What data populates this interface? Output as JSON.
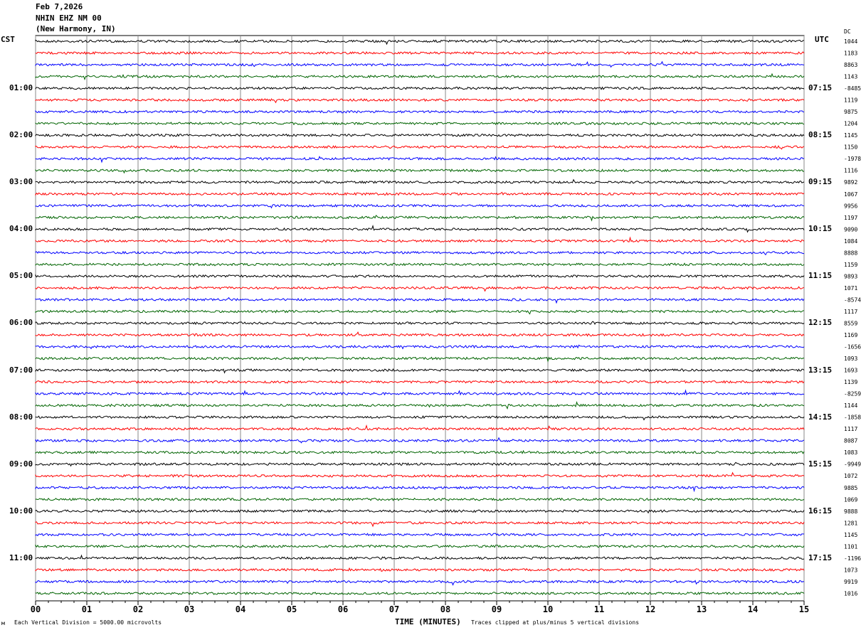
{
  "header": {
    "date": "Feb 7,2026",
    "station": "NHIN EHZ NM 00",
    "location": "(New Harmony, IN)"
  },
  "left_tz": "CST",
  "right_tz": "UTC",
  "dc_label": "DC",
  "footer": {
    "scale": "Each Vertical Division = 5000.00 microvolts",
    "xlabel": "TIME (MINUTES)",
    "clip": "Traces clipped at plus/minus 5 vertical divisions"
  },
  "chart_data": {
    "type": "line",
    "title": "NHIN EHZ NM 00 helicorder",
    "xlabel": "TIME (MINUTES)",
    "xlim": [
      0,
      15
    ],
    "x_ticks": [
      "00",
      "01",
      "02",
      "03",
      "04",
      "05",
      "06",
      "07",
      "08",
      "09",
      "10",
      "11",
      "12",
      "13",
      "14",
      "15"
    ],
    "left_hour_labels": [
      "01:00",
      "02:00",
      "03:00",
      "04:00",
      "05:00",
      "06:00",
      "07:00",
      "08:00",
      "09:00",
      "10:00",
      "11:00"
    ],
    "right_hour_labels": [
      "07:15",
      "08:15",
      "09:15",
      "10:15",
      "11:15",
      "12:15",
      "13:15",
      "14:15",
      "15:15",
      "16:15",
      "17:15"
    ],
    "trace_colors": [
      "#000000",
      "#ff0000",
      "#0000ff",
      "#006400"
    ],
    "trace_count": 48,
    "dc_offsets": [
      "1044",
      "1183",
      "8863",
      "1143",
      "-8485",
      "1119",
      "9875",
      "1204",
      "1145",
      "1150",
      "-1978",
      "1116",
      "9892",
      "1067",
      "9956",
      "1197",
      "9090",
      "1084",
      "8888",
      "1159",
      "9893",
      "1071",
      "-8574",
      "1117",
      "8559",
      "1169",
      "-1656",
      "1093",
      "1693",
      "1139",
      "-8259",
      "1144",
      "-1858",
      "1117",
      "8087",
      "1083",
      "-9949",
      "1072",
      "9885",
      "1069",
      "9888",
      "1281",
      "1145",
      "1101",
      "-1196",
      "1073",
      "9919",
      "1016"
    ]
  }
}
